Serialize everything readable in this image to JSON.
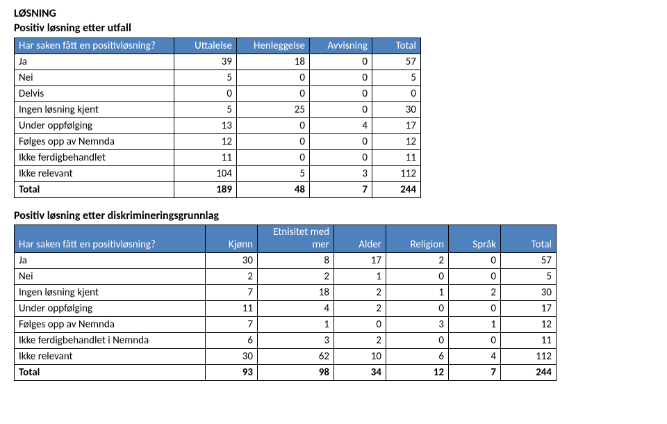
{
  "colors": {
    "header_bg": "#4f81bd",
    "header_fg": "#ffffff",
    "border": "#000000",
    "page_bg": "#ffffff",
    "text": "#000000"
  },
  "typography": {
    "font_family": "Calibri, Arial, sans-serif",
    "base_size_pt": 11,
    "title_weight": "bold"
  },
  "section1": {
    "heading": "LØSNING",
    "subheading": "Positiv løsning etter utfall",
    "question": "Har saken fått en positivløsning?",
    "headers": [
      "Uttalelse",
      "Henleggelse",
      "Avvisning",
      "Total"
    ],
    "rows": [
      {
        "label": "Ja",
        "values": [
          39,
          18,
          0,
          57
        ]
      },
      {
        "label": "Nei",
        "values": [
          5,
          0,
          0,
          5
        ]
      },
      {
        "label": "Delvis",
        "values": [
          0,
          0,
          0,
          0
        ]
      },
      {
        "label": "Ingen løsning kjent",
        "values": [
          5,
          25,
          0,
          30
        ]
      },
      {
        "label": "Under oppfølging",
        "values": [
          13,
          0,
          4,
          17
        ]
      },
      {
        "label": "Følges opp av Nemnda",
        "values": [
          12,
          0,
          0,
          12
        ]
      },
      {
        "label": "Ikke ferdigbehandlet",
        "values": [
          11,
          0,
          0,
          11
        ]
      },
      {
        "label": "Ikke relevant",
        "values": [
          104,
          5,
          3,
          112
        ]
      }
    ],
    "total": {
      "label": "Total",
      "values": [
        189,
        48,
        7,
        244
      ]
    }
  },
  "section2": {
    "subheading": "Positiv løsning etter diskrimineringsgrunnlag",
    "question": "Har saken fått en positivløsning?",
    "headers": [
      "Kjønn",
      "Etnisitet med mer",
      "Alder",
      "Religion",
      "Språk",
      "Total"
    ],
    "header_line1_col2": "Etnisitet med",
    "header_line2_col2": "mer",
    "rows": [
      {
        "label": "Ja",
        "values": [
          30,
          8,
          17,
          2,
          0,
          57
        ]
      },
      {
        "label": "Nei",
        "values": [
          2,
          2,
          1,
          0,
          0,
          5
        ]
      },
      {
        "label": "Ingen løsning kjent",
        "values": [
          7,
          18,
          2,
          1,
          2,
          30
        ]
      },
      {
        "label": "Under oppfølging",
        "values": [
          11,
          4,
          2,
          0,
          0,
          17
        ]
      },
      {
        "label": "Følges opp av Nemnda",
        "values": [
          7,
          1,
          0,
          3,
          1,
          12
        ]
      },
      {
        "label": "Ikke ferdigbehandlet i Nemnda",
        "values": [
          6,
          3,
          2,
          0,
          0,
          11
        ]
      },
      {
        "label": "Ikke relevant",
        "values": [
          30,
          62,
          10,
          6,
          4,
          112
        ]
      }
    ],
    "total": {
      "label": "Total",
      "values": [
        93,
        98,
        34,
        12,
        7,
        244
      ]
    }
  }
}
